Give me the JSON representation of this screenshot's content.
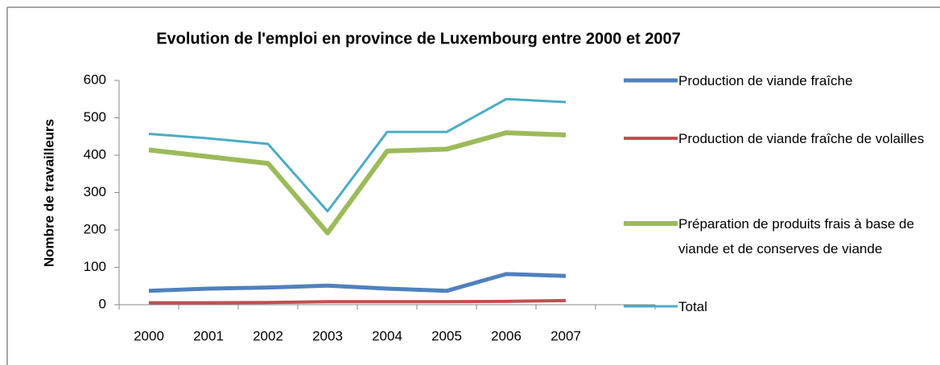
{
  "chart_data": {
    "type": "line",
    "title": "Evolution de l'emploi en province de Luxembourg entre 2000 et 2007",
    "y_label": "Nombre de travailleurs",
    "categories": [
      "2000",
      "2001",
      "2002",
      "2003",
      "2004",
      "2005",
      "2006",
      "2007"
    ],
    "series": [
      {
        "name": "Production de viande fraîche",
        "color": "#4f81bd",
        "values": [
          37,
          43,
          46,
          51,
          43,
          37,
          82,
          77
        ]
      },
      {
        "name": "Production de viande fraîche de volailles",
        "color": "#c0504d",
        "values": [
          5,
          5,
          6,
          8,
          8,
          8,
          9,
          11
        ]
      },
      {
        "name": "Préparation de produits frais à base de viande et de conserves de viande",
        "color": "#9bbb59",
        "values": [
          414,
          396,
          378,
          192,
          411,
          416,
          460,
          454
        ]
      },
      {
        "name": "Total",
        "color": "#4bacc6",
        "values": [
          457,
          445,
          430,
          250,
          462,
          462,
          550,
          542
        ]
      }
    ],
    "ylim": [
      0,
      600
    ],
    "yticks": [
      0,
      100,
      200,
      300,
      400,
      500,
      600
    ],
    "legend": "right"
  }
}
